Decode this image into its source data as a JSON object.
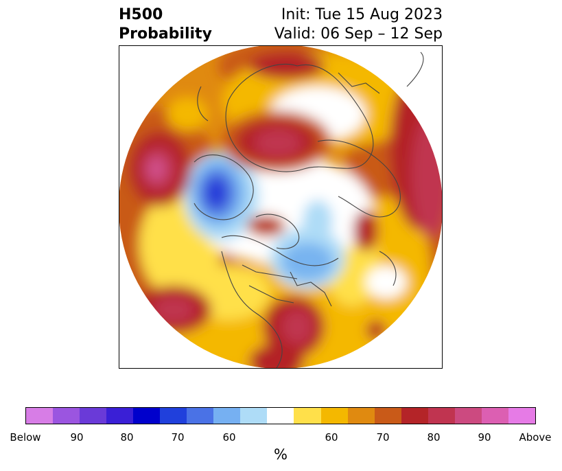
{
  "header": {
    "title_line1": "H500",
    "title_line2": "Probability",
    "init_text": "Init: Tue 15 Aug 2023",
    "valid_text": "Valid: 06 Sep – 12 Sep"
  },
  "map": {
    "projection": "north-polar-stereographic",
    "colors": {
      "white": "#ffffff",
      "above_60": "#ffe04a",
      "above_65": "#f4b800",
      "above_70": "#e08a10",
      "above_75": "#c95a18",
      "above_80": "#b42428",
      "above_85": "#c03450",
      "above_90": "#d0508a",
      "below_60": "#aedcf7",
      "below_65": "#78b4f0",
      "below_70": "#4a70e0",
      "below_75": "#2236d8"
    }
  },
  "colorbar": {
    "colors": [
      "#d77de6",
      "#9b55e0",
      "#6a3ad8",
      "#3a1fd6",
      "#0000cc",
      "#2040dc",
      "#4a72e6",
      "#76b0f2",
      "#aedcf7",
      "#ffffff",
      "#ffe04a",
      "#f4b800",
      "#e08a10",
      "#c95a18",
      "#b42428",
      "#c03450",
      "#cc4a80",
      "#dc5fb2",
      "#e67be6"
    ],
    "ticks": [
      "Below",
      "90",
      "80",
      "70",
      "60",
      "60",
      "70",
      "80",
      "90",
      "Above"
    ],
    "unit": "%"
  }
}
